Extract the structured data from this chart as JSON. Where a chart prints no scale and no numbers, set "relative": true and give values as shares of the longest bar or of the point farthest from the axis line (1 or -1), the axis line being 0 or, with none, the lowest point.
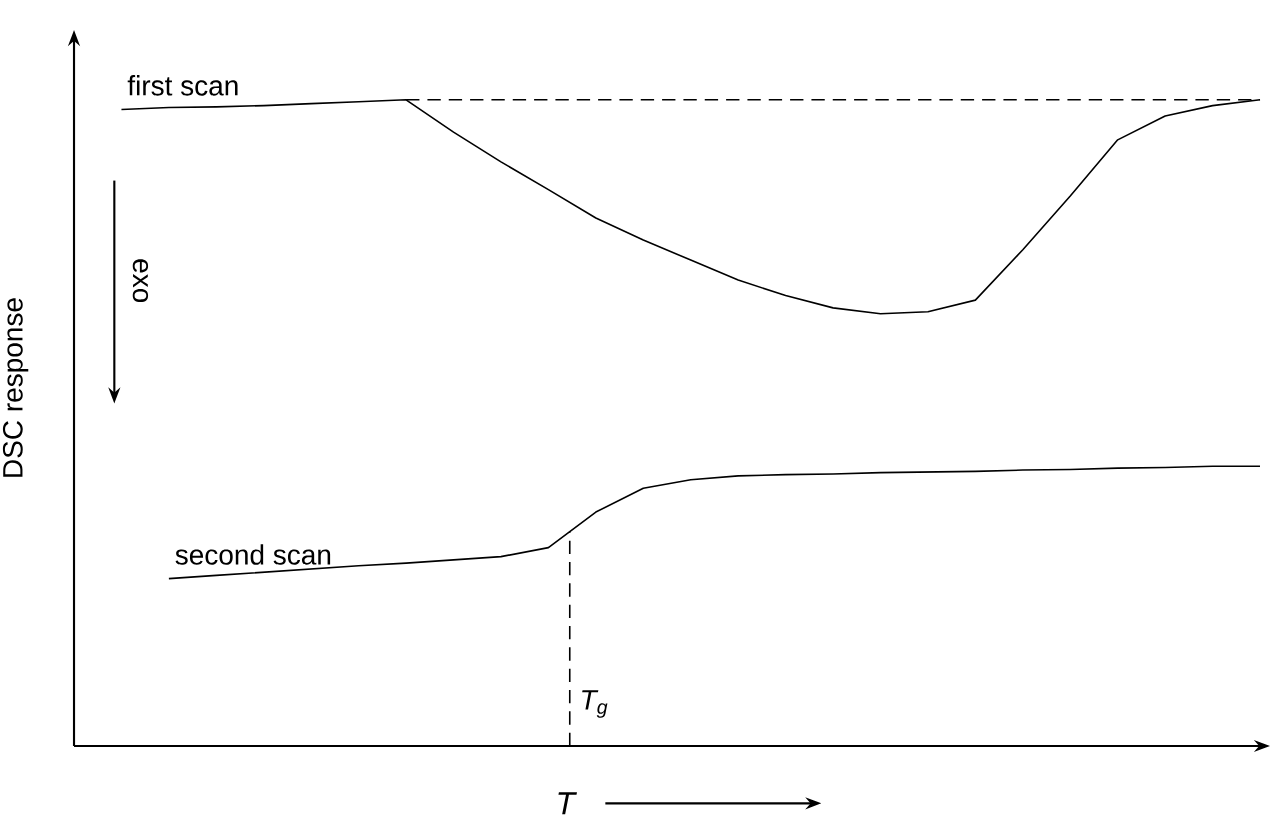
{
  "chart_data": {
    "type": "line",
    "relative": true,
    "xlabel": "T",
    "ylabel": "DSC response",
    "line_style": "solid",
    "categories": [
      null,
      null,
      null,
      null,
      null,
      null,
      null,
      null,
      null,
      null,
      null,
      null,
      null,
      null,
      null,
      null,
      null,
      null,
      null,
      null,
      null,
      null,
      null,
      null,
      null,
      null
    ],
    "series": [
      {
        "name": "first scan",
        "color": "#000000",
        "values": [
          null,
          0.985,
          0.988,
          0.989,
          0.991,
          0.994,
          0.997,
          1.0,
          0.95,
          0.904,
          0.861,
          0.817,
          0.783,
          0.752,
          0.721,
          0.697,
          0.678,
          0.669,
          0.672,
          0.69,
          0.768,
          0.851,
          0.938,
          0.975,
          0.991,
          1.0
        ]
      },
      {
        "name": "second scan",
        "color": "#000000",
        "values": [
          null,
          null,
          0.259,
          0.264,
          0.269,
          0.274,
          0.279,
          0.283,
          0.288,
          0.293,
          0.307,
          0.362,
          0.399,
          0.412,
          0.418,
          0.42,
          0.421,
          0.423,
          0.424,
          0.425,
          0.427,
          0.428,
          0.43,
          0.431,
          0.433,
          0.433
        ]
      },
      {
        "color": "#000000",
        "line_style": "dashed",
        "values": [
          null,
          null,
          null,
          null,
          null,
          null,
          null,
          1.0,
          1.0,
          1.0,
          1.0,
          1.0,
          1.0,
          1.0,
          1.0,
          1.0,
          1.0,
          1.0,
          1.0,
          1.0,
          1.0,
          1.0,
          1.0,
          1.0,
          1.0,
          1.0
        ]
      }
    ],
    "annotations": [
      "exo",
      "T$_{g}$"
    ]
  }
}
